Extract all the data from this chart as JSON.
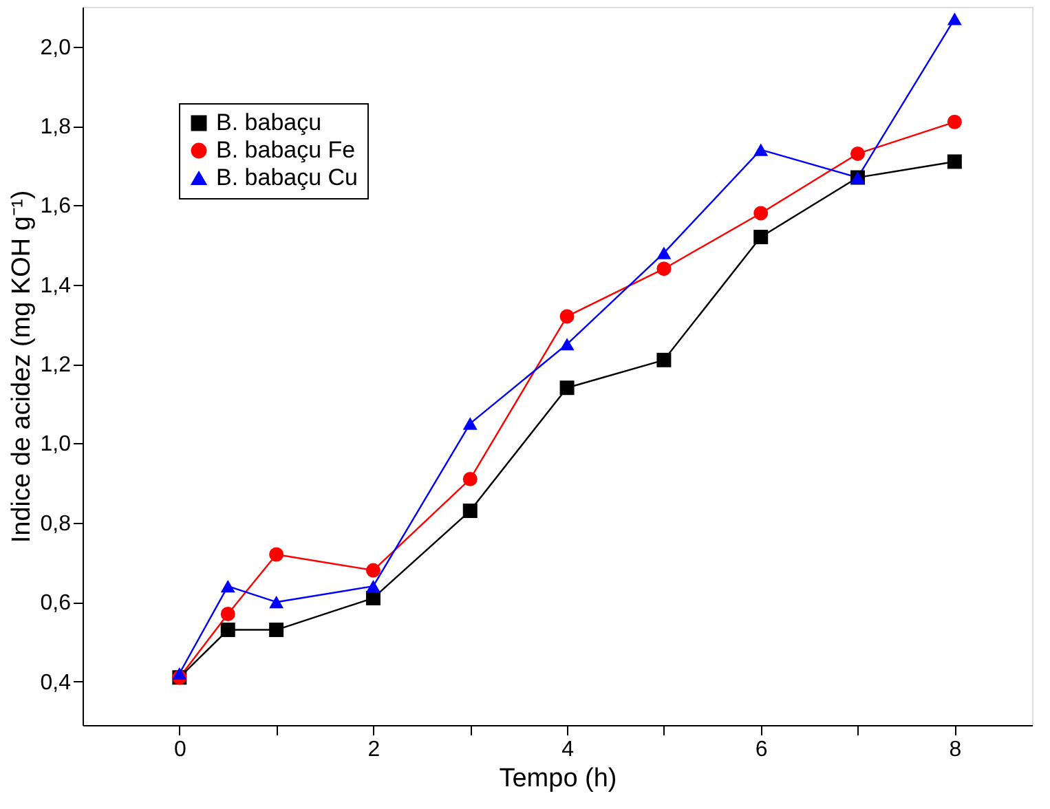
{
  "chart_data": {
    "type": "line",
    "xlabel": "Tempo (h)",
    "ylabel": "Indice de acidez (mg KOH g⁻¹)",
    "xlim": [
      -1,
      8.8
    ],
    "ylim": [
      0.29,
      2.1
    ],
    "xticks": [
      0,
      {
        "value": 1,
        "label": null
      },
      2,
      {
        "value": 3,
        "label": null
      },
      4,
      {
        "value": 5,
        "label": null
      },
      6,
      {
        "value": 7,
        "label": null
      },
      8
    ],
    "yticks": [
      {
        "value": 0.4,
        "label": "0,4"
      },
      {
        "value": 0.6,
        "label": "0,6"
      },
      {
        "value": 0.8,
        "label": "0,8"
      },
      {
        "value": 1.0,
        "label": "1,0"
      },
      {
        "value": 1.2,
        "label": "1,2"
      },
      {
        "value": 1.4,
        "label": "1,4"
      },
      {
        "value": 1.6,
        "label": "1,6"
      },
      {
        "value": 1.8,
        "label": "1,8"
      },
      {
        "value": 2.0,
        "label": "2,0"
      }
    ],
    "x": [
      0,
      0.5,
      1,
      2,
      3,
      4,
      5,
      6,
      7,
      8
    ],
    "grid": false,
    "legend": "top left",
    "line_style": "solid",
    "series": [
      {
        "name": "B. babaçu",
        "color": "#000000",
        "marker": "square",
        "values": [
          0.41,
          0.53,
          0.53,
          0.61,
          0.83,
          1.14,
          1.21,
          1.52,
          1.67,
          1.71
        ]
      },
      {
        "name": "B. babaçu Fe",
        "color": "#ff0000",
        "marker": "circle",
        "values": [
          0.41,
          0.57,
          0.72,
          0.68,
          0.91,
          1.32,
          1.44,
          1.58,
          1.73,
          1.81
        ]
      },
      {
        "name": "B. babaçu Cu",
        "color": "#0000ff",
        "marker": "triangle",
        "values": [
          0.42,
          0.64,
          0.6,
          0.64,
          1.05,
          1.25,
          1.48,
          1.74,
          1.67,
          2.07
        ]
      }
    ]
  }
}
